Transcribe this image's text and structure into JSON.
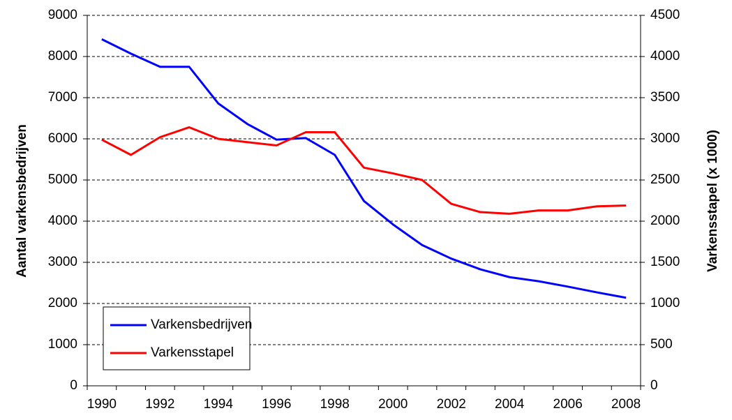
{
  "chart_data": {
    "type": "line",
    "categories": [
      "1990",
      null,
      "1992",
      null,
      "1994",
      null,
      "1996",
      null,
      "1998",
      null,
      "2000",
      null,
      "2002",
      null,
      "2004",
      null,
      "2006",
      null,
      "2008"
    ],
    "y_label": "Aantal varkensbedrijven",
    "y2_label": "Varkensstapel (x 1000)",
    "ylim": [
      0,
      9000
    ],
    "yticks": [
      0,
      1000,
      2000,
      3000,
      4000,
      5000,
      6000,
      7000,
      8000,
      9000
    ],
    "y2lim": [
      0,
      4500
    ],
    "y2ticks": [
      0,
      500,
      1000,
      1500,
      2000,
      2500,
      3000,
      3500,
      4000,
      4500
    ],
    "grid": true,
    "legend": "lower left",
    "series": [
      {
        "name": "Varkensbedrijven",
        "color": "#0000ff",
        "values": [
          8420,
          8070,
          7750,
          7750,
          6860,
          6360,
          5980,
          6020,
          5610,
          4490,
          3920,
          3420,
          3090,
          2830,
          2640,
          2540,
          2410,
          2270,
          2140
        ]
      },
      {
        "name": "Varkensstapel",
        "color": "#ff0000",
        "axis": "y2",
        "values": [
          2990,
          2805,
          3020,
          3140,
          3000,
          2960,
          2920,
          3080,
          3080,
          2650,
          2580,
          2500,
          2210,
          2110,
          2090,
          2130,
          2130,
          2180,
          2190
        ]
      }
    ]
  }
}
